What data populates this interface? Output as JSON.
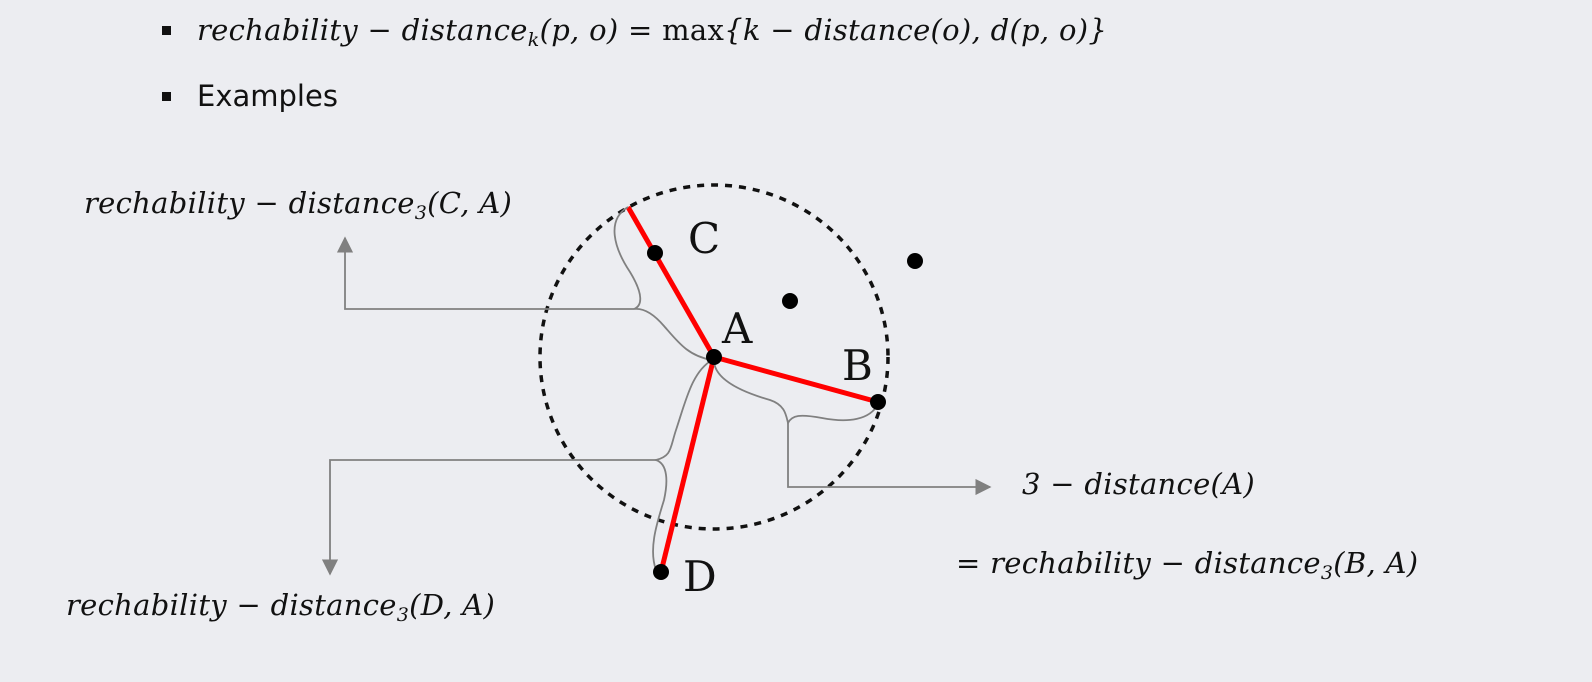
{
  "bullets": {
    "formula": {
      "lhs_name": "rechability − distance",
      "lhs_sub": "k",
      "lhs_args": "(p, o) = ",
      "max": "max",
      "rhs": "{k − distance(o), d(p, o)}"
    },
    "examples": "Examples"
  },
  "diagram": {
    "points": {
      "A": "A",
      "B": "B",
      "C": "C",
      "D": "D"
    },
    "labels": {
      "c_name": "rechability − distance",
      "c_sub": "3",
      "c_args": "(C, A)",
      "d_name": "rechability − distance",
      "d_sub": "3",
      "d_args": "(D, A)",
      "kdist": "3 − distance(A)",
      "b_prefix": "= rechability − distance",
      "b_sub": "3",
      "b_args": "(B, A)"
    },
    "colors": {
      "segment": "#ff0000",
      "circle": "#111111",
      "connector": "#808080"
    }
  }
}
